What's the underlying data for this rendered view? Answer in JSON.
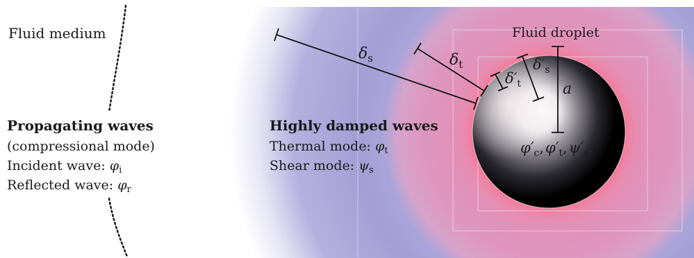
{
  "fluid_medium": "Fluid medium",
  "propagating": {
    "title": "Propagating waves",
    "subtitle": "(compressional mode)",
    "incident_label": "Incident wave:",
    "incident_symbol": "φ",
    "incident_sub": "i",
    "reflected_label": "Reflected wave:",
    "reflected_symbol": "φ",
    "reflected_sub": "r"
  },
  "damped": {
    "title": "Highly damped waves",
    "thermal_label": "Thermal mode:",
    "thermal_symbol": "φ",
    "thermal_sub": "t",
    "shear_label": "Shear mode:",
    "shear_symbol": "ψ",
    "shear_sub": "s"
  },
  "droplet": {
    "title": "Fluid droplet",
    "radius_symbol": "a",
    "fields": {
      "c_symbol": "φ′",
      "c_sub": "c",
      "t_symbol": "φ′",
      "t_sub": "t",
      "s_symbol": "ψ′",
      "s_sub": "s",
      "sep": ","
    }
  },
  "lengths": {
    "delta_s": {
      "symbol": "δ",
      "sub": "s"
    },
    "delta_t": {
      "symbol": "δ",
      "sub": "t"
    },
    "delta_t_prime": {
      "symbol": "δ′",
      "sub": "t"
    },
    "delta_s_prime": {
      "symbol": "δ′",
      "sub": "s"
    }
  },
  "colors": {
    "shear_region": "#a8a3d6",
    "thermal_region": "#d9a6c6",
    "glow": "#f08aa0",
    "droplet_dark": "#000000",
    "droplet_light": "#ffffff",
    "line": "#111111"
  }
}
